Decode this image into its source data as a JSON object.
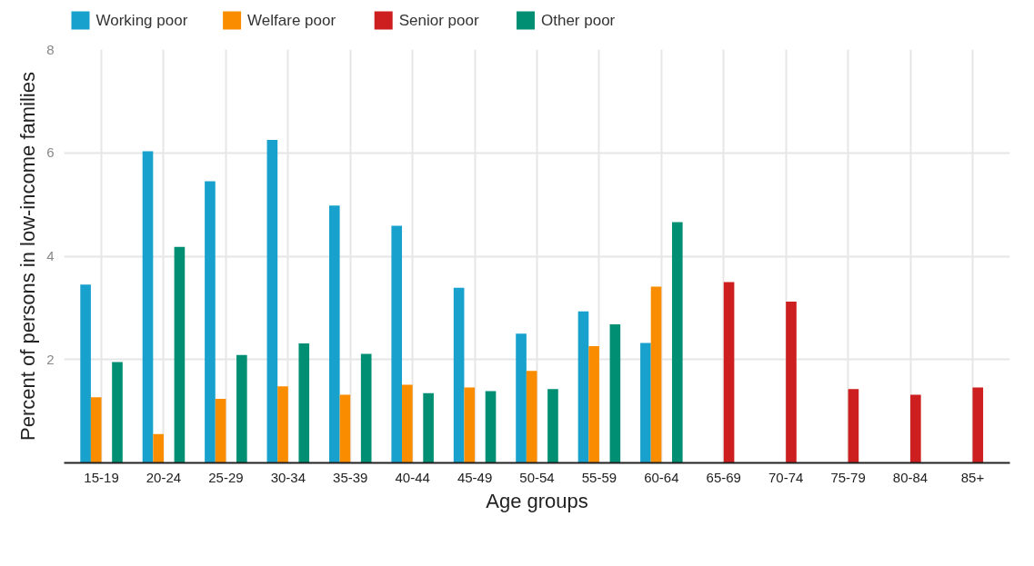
{
  "chart_data": {
    "type": "bar",
    "xlabel": "Age groups",
    "ylabel": "Percent of persons in low-income families",
    "categories": [
      "15-19",
      "20-24",
      "25-29",
      "30-34",
      "35-39",
      "40-44",
      "45-49",
      "50-54",
      "55-59",
      "60-64",
      "65-69",
      "70-74",
      "75-79",
      "80-84",
      "85+"
    ],
    "series": [
      {
        "name": "Working poor",
        "color": "#18a1cd",
        "values": [
          3.45,
          6.03,
          5.45,
          6.25,
          4.98,
          4.59,
          3.39,
          2.5,
          2.93,
          2.32,
          null,
          null,
          null,
          null,
          null
        ]
      },
      {
        "name": "Welfare poor",
        "color": "#fa8c00",
        "values": [
          1.27,
          0.56,
          1.24,
          1.48,
          1.32,
          1.51,
          1.46,
          1.78,
          2.26,
          3.41,
          null,
          null,
          null,
          null,
          null
        ]
      },
      {
        "name": "Senior poor",
        "color": "#cd1f1f",
        "values": [
          null,
          null,
          null,
          null,
          null,
          null,
          null,
          null,
          null,
          null,
          3.5,
          3.12,
          1.43,
          1.32,
          1.46
        ]
      },
      {
        "name": "Other poor",
        "color": "#008f73",
        "values": [
          1.95,
          4.18,
          2.09,
          2.31,
          2.11,
          1.35,
          1.39,
          1.43,
          2.68,
          4.66,
          null,
          null,
          null,
          null,
          null
        ]
      }
    ],
    "ylim": [
      0,
      8
    ],
    "yticks": [
      2,
      4,
      6,
      8
    ],
    "grid": true,
    "legend": "top left"
  }
}
